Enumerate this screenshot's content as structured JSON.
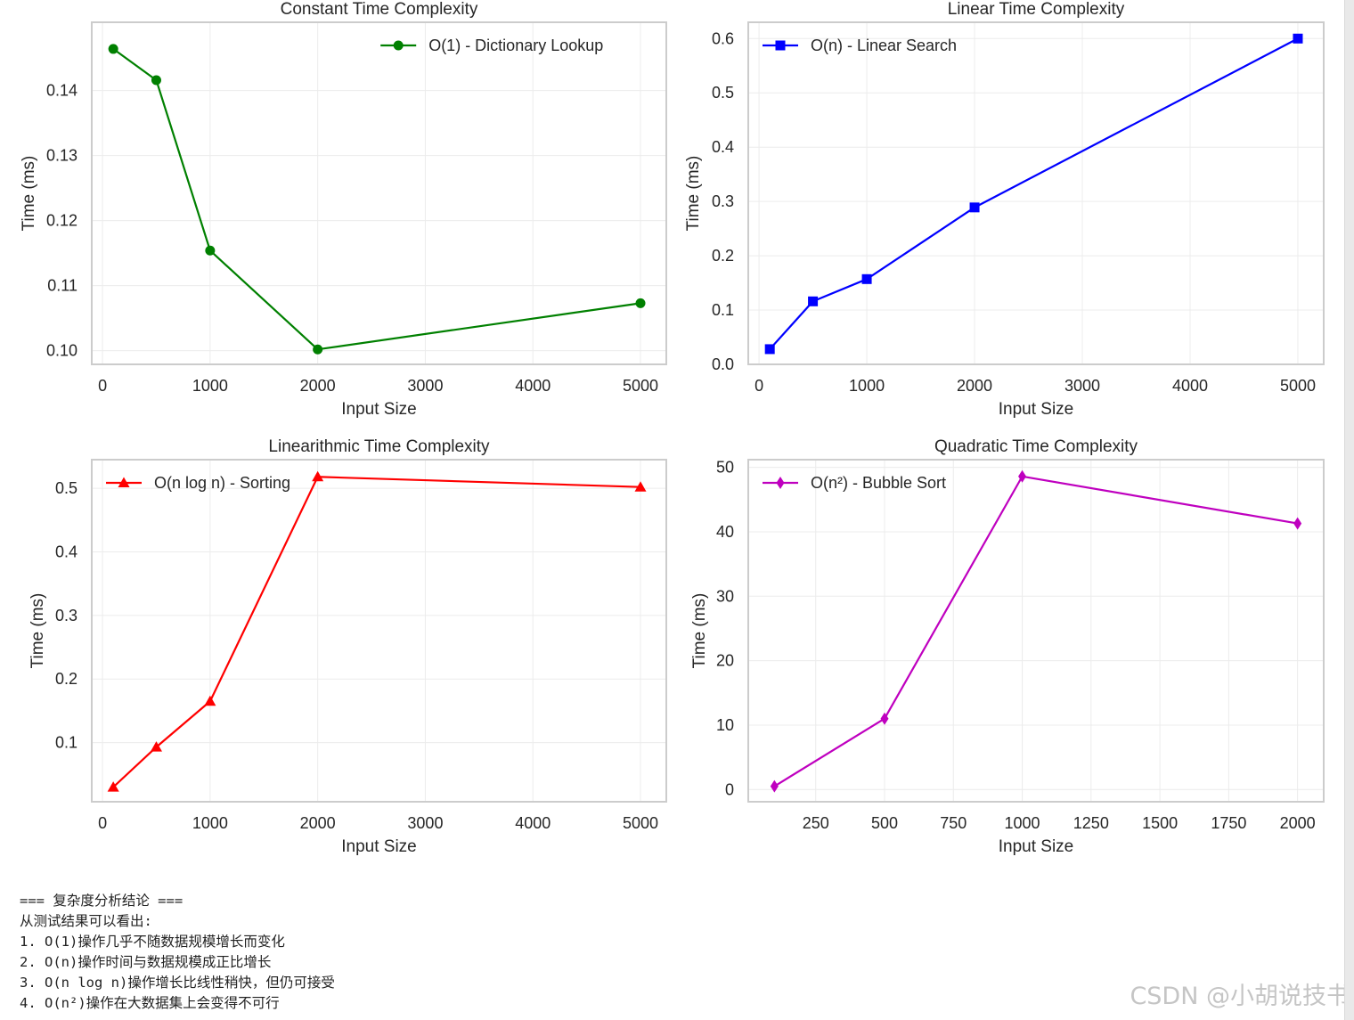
{
  "chart_data": [
    {
      "type": "line",
      "title": "Constant Time Complexity",
      "xlabel": "Input Size",
      "ylabel": "Time (ms)",
      "xlim": [
        -100,
        5240
      ],
      "ylim": [
        0.0979,
        0.1505
      ],
      "xticks": [
        0,
        1000,
        2000,
        3000,
        4000,
        5000
      ],
      "yticks": [
        0.1,
        0.11,
        0.12,
        0.13,
        0.14
      ],
      "ytick_labels": [
        "0.10",
        "0.11",
        "0.12",
        "0.13",
        "0.14"
      ],
      "grid": true,
      "legend_position": "top-right",
      "series": [
        {
          "name": "O(1) - Dictionary Lookup",
          "color": "#008000",
          "marker": "circle",
          "x": [
            100,
            500,
            1000,
            2000,
            5000
          ],
          "y": [
            0.1464,
            0.1416,
            0.1154,
            0.1002,
            0.1073
          ]
        }
      ]
    },
    {
      "type": "line",
      "title": "Linear Time Complexity",
      "xlabel": "Input Size",
      "ylabel": "Time (ms)",
      "xlim": [
        -100,
        5240
      ],
      "ylim": [
        0.0,
        0.63
      ],
      "xticks": [
        0,
        1000,
        2000,
        3000,
        4000,
        5000
      ],
      "yticks": [
        0.0,
        0.1,
        0.2,
        0.3,
        0.4,
        0.5,
        0.6
      ],
      "ytick_labels": [
        "0.0",
        "0.1",
        "0.2",
        "0.3",
        "0.4",
        "0.5",
        "0.6"
      ],
      "grid": true,
      "legend_position": "top-left",
      "series": [
        {
          "name": "O(n) - Linear Search",
          "color": "#0000ff",
          "marker": "square",
          "x": [
            100,
            500,
            1000,
            2000,
            5000
          ],
          "y": [
            0.028,
            0.116,
            0.157,
            0.289,
            0.6
          ]
        }
      ]
    },
    {
      "type": "line",
      "title": "Linearithmic Time Complexity",
      "xlabel": "Input Size",
      "ylabel": "Time (ms)",
      "xlim": [
        -100,
        5240
      ],
      "ylim": [
        0.007,
        0.545
      ],
      "xticks": [
        0,
        1000,
        2000,
        3000,
        4000,
        5000
      ],
      "yticks": [
        0.1,
        0.2,
        0.3,
        0.4,
        0.5
      ],
      "ytick_labels": [
        "0.1",
        "0.2",
        "0.3",
        "0.4",
        "0.5"
      ],
      "grid": true,
      "legend_position": "top-left",
      "series": [
        {
          "name": "O(n log n) - Sorting",
          "color": "#ff0000",
          "marker": "triangle",
          "x": [
            100,
            500,
            1000,
            2000,
            5000
          ],
          "y": [
            0.03,
            0.093,
            0.165,
            0.518,
            0.502
          ]
        }
      ]
    },
    {
      "type": "line",
      "title": "Quadratic Time Complexity",
      "xlabel": "Input Size",
      "ylabel": "Time (ms)",
      "xlim": [
        5,
        2095
      ],
      "ylim": [
        -1.9,
        51.2
      ],
      "xticks": [
        250,
        500,
        750,
        1000,
        1250,
        1500,
        1750,
        2000
      ],
      "yticks": [
        0,
        10,
        20,
        30,
        40,
        50
      ],
      "ytick_labels": [
        "0",
        "10",
        "20",
        "30",
        "40",
        "50"
      ],
      "grid": true,
      "legend_position": "top-left",
      "series": [
        {
          "name": "O(n²) - Bubble Sort",
          "color": "#bf00bf",
          "marker": "diamond",
          "x": [
            100,
            500,
            1000,
            2000
          ],
          "y": [
            0.5,
            11.0,
            48.6,
            41.3
          ]
        }
      ]
    }
  ],
  "conclusions": {
    "header": "=== 复杂度分析结论 ===",
    "intro": "从测试结果可以看出:",
    "items": [
      "1. O(1)操作几乎不随数据规模增长而变化",
      "2. O(n)操作时间与数据规模成正比增长",
      "3. O(n log n)操作增长比线性稍快，但仍可接受",
      "4. O(n²)操作在大数据集上会变得不可行"
    ]
  },
  "watermark": "CSDN @小胡说技书"
}
